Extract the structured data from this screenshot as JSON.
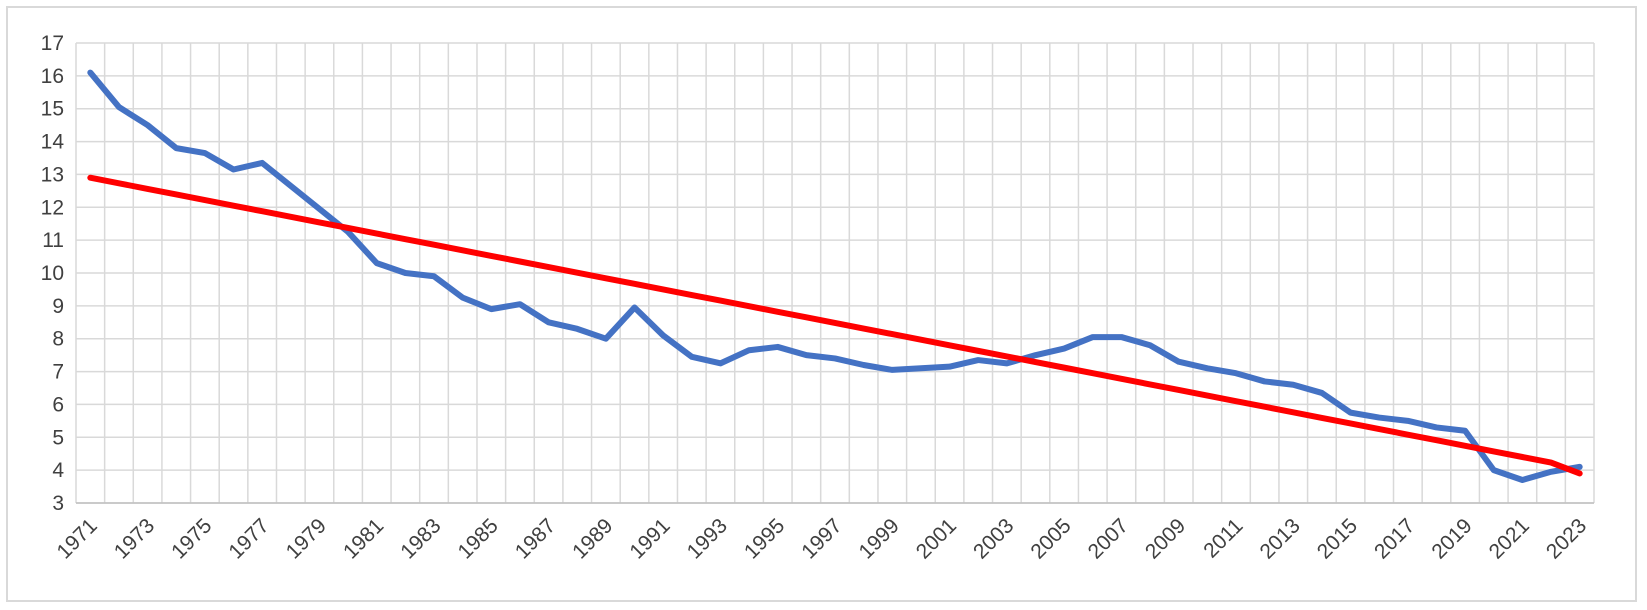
{
  "chart_data": {
    "type": "line",
    "title": "",
    "xlabel": "",
    "ylabel": "",
    "ylim": [
      3,
      17
    ],
    "yticks": [
      3,
      4,
      5,
      6,
      7,
      8,
      9,
      10,
      11,
      12,
      13,
      14,
      15,
      16,
      17
    ],
    "x_tick_labels": [
      "1971",
      "1973",
      "1975",
      "1977",
      "1979",
      "1981",
      "1983",
      "1985",
      "1987",
      "1989",
      "1991",
      "1993",
      "1995",
      "1997",
      "1999",
      "2001",
      "2003",
      "2005",
      "2007",
      "2009",
      "2011",
      "2013",
      "2015",
      "2017",
      "2019",
      "2021",
      "2023"
    ],
    "grid": true,
    "legend": "none",
    "x": [
      1971,
      1972,
      1973,
      1974,
      1975,
      1976,
      1977,
      1978,
      1979,
      1980,
      1981,
      1982,
      1983,
      1984,
      1985,
      1986,
      1987,
      1988,
      1989,
      1990,
      1991,
      1992,
      1993,
      1994,
      1995,
      1996,
      1997,
      1998,
      1999,
      2000,
      2001,
      2002,
      2003,
      2004,
      2005,
      2006,
      2007,
      2008,
      2009,
      2010,
      2011,
      2012,
      2013,
      2014,
      2015,
      2016,
      2017,
      2018,
      2019,
      2020,
      2021,
      2022,
      2023
    ],
    "series": [
      {
        "color": "#4472c4",
        "values": [
          16.1,
          15.05,
          14.5,
          13.8,
          13.65,
          13.15,
          13.35,
          12.65,
          11.95,
          11.25,
          10.3,
          10.0,
          9.9,
          9.25,
          8.9,
          9.05,
          8.5,
          8.3,
          8.0,
          8.95,
          8.1,
          7.45,
          7.25,
          7.65,
          7.75,
          7.5,
          7.4,
          7.2,
          7.05,
          7.1,
          7.15,
          7.35,
          7.25,
          7.5,
          7.7,
          8.05,
          8.05,
          7.8,
          7.3,
          7.1,
          6.95,
          6.7,
          6.6,
          6.35,
          5.75,
          5.6,
          5.5,
          5.3,
          5.2,
          4.0,
          3.7,
          3.95,
          4.1
        ]
      },
      {
        "color": "#ff0000",
        "values": [
          12.9,
          12.73,
          12.56,
          12.39,
          12.22,
          12.05,
          11.88,
          11.71,
          11.54,
          11.37,
          11.2,
          11.03,
          10.86,
          10.69,
          10.52,
          10.35,
          10.18,
          10.01,
          9.84,
          9.67,
          9.5,
          9.33,
          9.16,
          8.99,
          8.82,
          8.65,
          8.48,
          8.31,
          8.14,
          7.97,
          7.8,
          7.63,
          7.46,
          7.29,
          7.12,
          6.95,
          6.78,
          6.61,
          6.44,
          6.27,
          6.1,
          5.93,
          5.76,
          5.59,
          5.42,
          5.25,
          5.08,
          4.91,
          4.74,
          4.57,
          4.4,
          4.23,
          3.9
        ]
      }
    ]
  }
}
